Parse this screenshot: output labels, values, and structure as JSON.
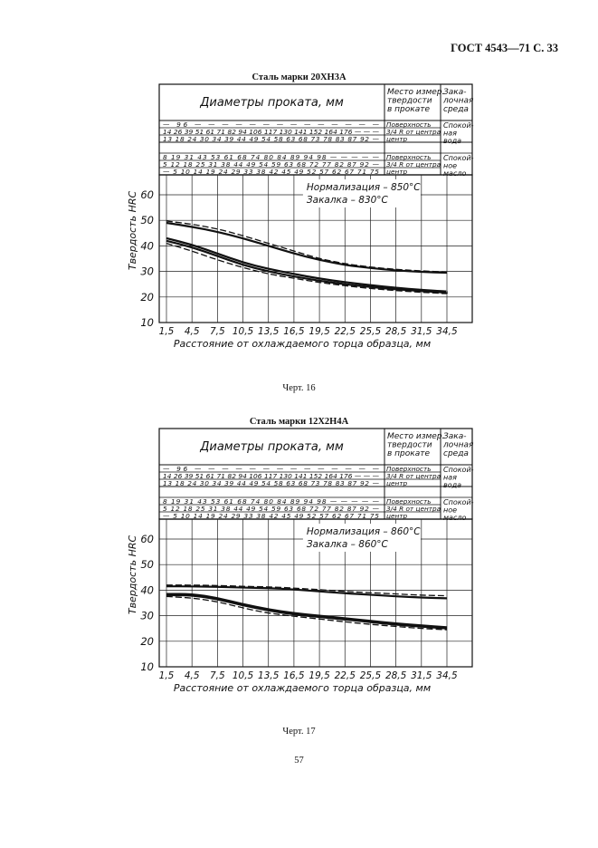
{
  "header": {
    "text": "ГОСТ 4543—71 С. 33"
  },
  "page_number": "57",
  "figures": [
    {
      "title": "Сталь марки 20ХН3А",
      "caption": "Черт. 16",
      "table": {
        "head_diam": "Диаметры проката, мм",
        "head_place": [
          "Место измер.",
          "твердости",
          "в прокате"
        ],
        "head_medium": [
          "Зака-",
          "лочная",
          "среда"
        ],
        "rows": [
          "— 96 — — — — — — — — — — — — — —",
          "14 26 39 51 61 71 82 94 106 117 130 141 152 164 176 — — —",
          "13 18 24 30 34 39 44 49 54 58 63 68 73 78 83 87 92 —",
          "8 19 31 43 53 61 68 74 80 84 89 94 98 — — — — —",
          "5 12 18 25 31 38 44 49 54 59 63 68 72 77 82 87 92 —",
          "— 5 10 14 19 24 29 33 38 42 45 49 52 57 62 67 71 75"
        ],
        "places": [
          "Поверхность",
          "3/4 R от центра",
          "центр",
          "Поверхность",
          "3/4 R от центра",
          "центр"
        ],
        "media": [
          [
            "Спокой-",
            "ная",
            "вода"
          ],
          [
            "Спокой-",
            "ное",
            "масло"
          ]
        ]
      },
      "chart_data": {
        "type": "line",
        "xlabel": "Расстояние от охлаждаемого торца образца, мм",
        "ylabel": "Твердость HRC",
        "x_ticks": [
          "1,5",
          "4,5",
          "7,5",
          "10,5",
          "13,5",
          "16,5",
          "19,5",
          "22,5",
          "25,5",
          "28,5",
          "31,5",
          "34,5"
        ],
        "x": [
          1.5,
          4.5,
          7.5,
          10.5,
          13.5,
          16.5,
          19.5,
          22.5,
          25.5,
          28.5,
          31.5,
          34.5
        ],
        "y_ticks": [
          "10",
          "20",
          "30",
          "40",
          "50",
          "60"
        ],
        "ylim": [
          10,
          60
        ],
        "note_lines": [
          "Нормализация – 850°C",
          "Закалка – 830°C"
        ],
        "series": [
          {
            "style": "solid",
            "values": [
              49,
              47.5,
              45.5,
              43,
              40,
              37,
              34.5,
              32.5,
              31.3,
              30.4,
              29.8,
              29.5
            ]
          },
          {
            "style": "dashed",
            "values": [
              49.7,
              48.5,
              46.7,
              44,
              41,
              38,
              35,
              33,
              31.7,
              30.8,
              30.2,
              29.8
            ]
          },
          {
            "style": "solid",
            "values": [
              43,
              40.5,
              37,
              33.5,
              31,
              29,
              27.2,
              25.8,
              24.6,
              23.6,
              22.8,
              22.2
            ]
          },
          {
            "style": "solid",
            "values": [
              42,
              39.5,
              36,
              32.5,
              30,
              28,
              26.3,
              25,
              23.9,
              23,
              22.3,
              21.7
            ]
          },
          {
            "style": "dashed",
            "values": [
              41,
              38,
              34.5,
              31.5,
              29,
              27.3,
              25.7,
              24.4,
              23.3,
              22.5,
              21.8,
              21.3
            ]
          }
        ]
      }
    },
    {
      "title": "Сталь марки 12Х2Н4А",
      "caption": "Черт. 17",
      "table": {
        "head_diam": "Диаметры проката, мм",
        "head_place": [
          "Место измер.",
          "твердости",
          "в прокате"
        ],
        "head_medium": [
          "Зака-",
          "лочная",
          "среда"
        ],
        "rows": [
          "— 96 — — — — — — — — — — — — — —",
          "14 26 39 51 61 71 82 94 106 117 130 141 152 164 176 — — —",
          "13 18 24 30 34 39 44 49 54 58 63 68 73 78 83 87 92 —",
          "8 19 31 43 53 61 68 74 80 84 89 94 98 — — — — —",
          "5 12 18 25 31 38 44 49 54 59 63 68 72 77 82 87 92 —",
          "— 5 10 14 19 24 29 33 38 42 45 49 52 57 62 67 71 75"
        ],
        "places": [
          "Поверхность",
          "3/4 R от центра",
          "центр",
          "Поверхность",
          "3/4 R от центра",
          "центр"
        ],
        "media": [
          [
            "Спокой-",
            "ная",
            "вода"
          ],
          [
            "Спокой-",
            "ное",
            "масло"
          ]
        ]
      },
      "chart_data": {
        "type": "line",
        "xlabel": "Расстояние от охлаждаемого торца образца, мм",
        "ylabel": "Твердость HRC",
        "x_ticks": [
          "1,5",
          "4,5",
          "7,5",
          "10,5",
          "13,5",
          "16,5",
          "19,5",
          "22,5",
          "25,5",
          "28,5",
          "31,5",
          "34,5"
        ],
        "x": [
          1.5,
          4.5,
          7.5,
          10.5,
          13.5,
          16.5,
          19.5,
          22.5,
          25.5,
          28.5,
          31.5,
          34.5
        ],
        "y_ticks": [
          "10",
          "20",
          "30",
          "40",
          "50",
          "60"
        ],
        "ylim": [
          10,
          60
        ],
        "note_lines": [
          "Нормализация – 860°C",
          "Закалка – 860°C"
        ],
        "series": [
          {
            "style": "dashed",
            "values": [
              42,
              42,
              41.8,
              41.5,
              41.3,
              40.8,
              40.2,
              39.5,
              39,
              38.5,
              38,
              37.8
            ]
          },
          {
            "style": "solid",
            "values": [
              41.5,
              41.5,
              41.3,
              41,
              40.8,
              40.3,
              39.5,
              38.8,
              38.2,
              37.6,
              37.1,
              36.8
            ]
          },
          {
            "style": "solid",
            "values": [
              38.5,
              38.5,
              37,
              34.5,
              32.5,
              31,
              30,
              29,
              28,
              27,
              26.2,
              25.5
            ]
          },
          {
            "style": "solid",
            "values": [
              38,
              38,
              36.5,
              34,
              32,
              30.5,
              29.5,
              28.5,
              27.5,
              26.5,
              25.7,
              25
            ]
          },
          {
            "style": "dashed",
            "values": [
              37.5,
              37,
              35.5,
              33,
              31,
              29.8,
              28.7,
              27.6,
              26.6,
              25.8,
              25,
              24.5
            ]
          }
        ]
      }
    }
  ]
}
